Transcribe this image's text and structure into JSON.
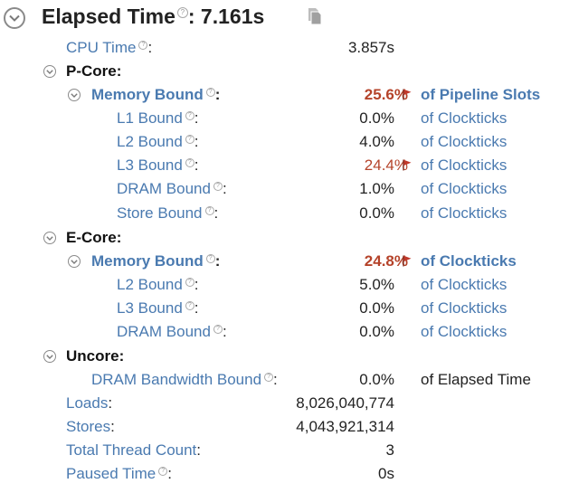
{
  "header": {
    "title": "Elapsed Time",
    "value": ": 7.161s"
  },
  "help_glyph": "?",
  "rows": {
    "cpu_time": {
      "label": "CPU Time",
      "colon": ":",
      "value": "3.857s"
    },
    "pcore": {
      "label": "P-Core:"
    },
    "pcore_mem": {
      "label": "Memory Bound",
      "colon": ":",
      "value": "25.6%",
      "unit": "of Pipeline Slots"
    },
    "pcore_l1": {
      "label": "L1 Bound",
      "colon": ":",
      "value": "0.0%",
      "unit": "of Clockticks"
    },
    "pcore_l2": {
      "label": "L2 Bound",
      "colon": ":",
      "value": "4.0%",
      "unit": "of Clockticks"
    },
    "pcore_l3": {
      "label": "L3 Bound",
      "colon": ":",
      "value": "24.4%",
      "unit": "of Clockticks"
    },
    "pcore_dram": {
      "label": "DRAM Bound",
      "colon": ":",
      "value": "1.0%",
      "unit": "of Clockticks"
    },
    "pcore_store": {
      "label": "Store Bound",
      "colon": ":",
      "value": "0.0%",
      "unit": "of Clockticks"
    },
    "ecore": {
      "label": "E-Core:"
    },
    "ecore_mem": {
      "label": "Memory Bound",
      "colon": ":",
      "value": "24.8%",
      "unit": "of Clockticks"
    },
    "ecore_l2": {
      "label": "L2 Bound",
      "colon": ":",
      "value": "5.0%",
      "unit": "of Clockticks"
    },
    "ecore_l3": {
      "label": "L3 Bound",
      "colon": ":",
      "value": "0.0%",
      "unit": "of Clockticks"
    },
    "ecore_dram": {
      "label": "DRAM Bound",
      "colon": ":",
      "value": "0.0%",
      "unit": "of Clockticks"
    },
    "uncore": {
      "label": "Uncore:"
    },
    "uncore_dram_bw": {
      "label": "DRAM Bandwidth Bound",
      "colon": ":",
      "value": "0.0%",
      "unit": "of Elapsed Time"
    },
    "loads": {
      "label": "Loads",
      "colon": ":",
      "value": "8,026,040,774"
    },
    "stores": {
      "label": "Stores",
      "colon": ":",
      "value": "4,043,921,314"
    },
    "thread_count": {
      "label": "Total Thread Count",
      "colon": ":",
      "value": "3"
    },
    "paused_time": {
      "label": "Paused Time",
      "colon": ":",
      "value": "0s"
    }
  },
  "colors": {
    "link": "#4a7ab0",
    "flagged": "#b5432a",
    "flag": "#c0392b"
  }
}
